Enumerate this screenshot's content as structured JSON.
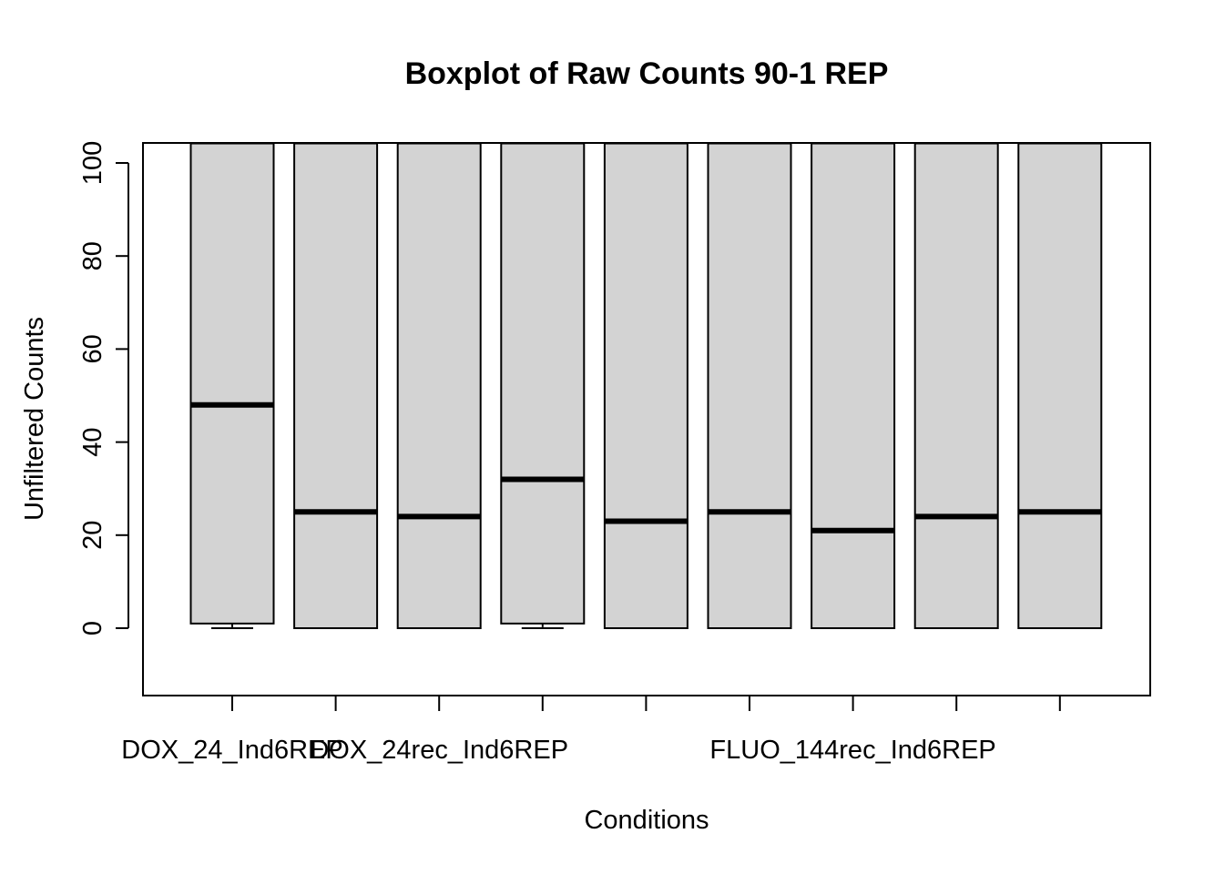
{
  "chart_data": {
    "type": "box",
    "title": "Boxplot of Raw Counts 90-1 REP",
    "xlabel": "Conditions",
    "ylabel": "Unfiltered Counts",
    "ylim": [
      -14.5,
      104.2
    ],
    "yticks": [
      0,
      20,
      40,
      60,
      80,
      100
    ],
    "xtick_labels": [
      "DOX_24_Ind6REP",
      "",
      "DOX_24rec_Ind6REP",
      "",
      "",
      "",
      "FLUO_144rec_Ind6REP",
      "",
      ""
    ],
    "box_color": "#d3d3d3",
    "boxes": [
      {
        "q1": 1,
        "median": 48,
        "q3": 104.2,
        "whisker_low": 0
      },
      {
        "q1": 0,
        "median": 25,
        "q3": 104.2,
        "whisker_low": 0
      },
      {
        "q1": 0,
        "median": 24,
        "q3": 104.2,
        "whisker_low": 0
      },
      {
        "q1": 1,
        "median": 32,
        "q3": 104.2,
        "whisker_low": 0
      },
      {
        "q1": 0,
        "median": 23,
        "q3": 104.2,
        "whisker_low": 0
      },
      {
        "q1": 0,
        "median": 25,
        "q3": 104.2,
        "whisker_low": 0
      },
      {
        "q1": 0,
        "median": 21,
        "q3": 104.2,
        "whisker_low": 0
      },
      {
        "q1": 0,
        "median": 24,
        "q3": 104.2,
        "whisker_low": 0
      },
      {
        "q1": 0,
        "median": 25,
        "q3": 104.2,
        "whisker_low": 0
      }
    ]
  }
}
